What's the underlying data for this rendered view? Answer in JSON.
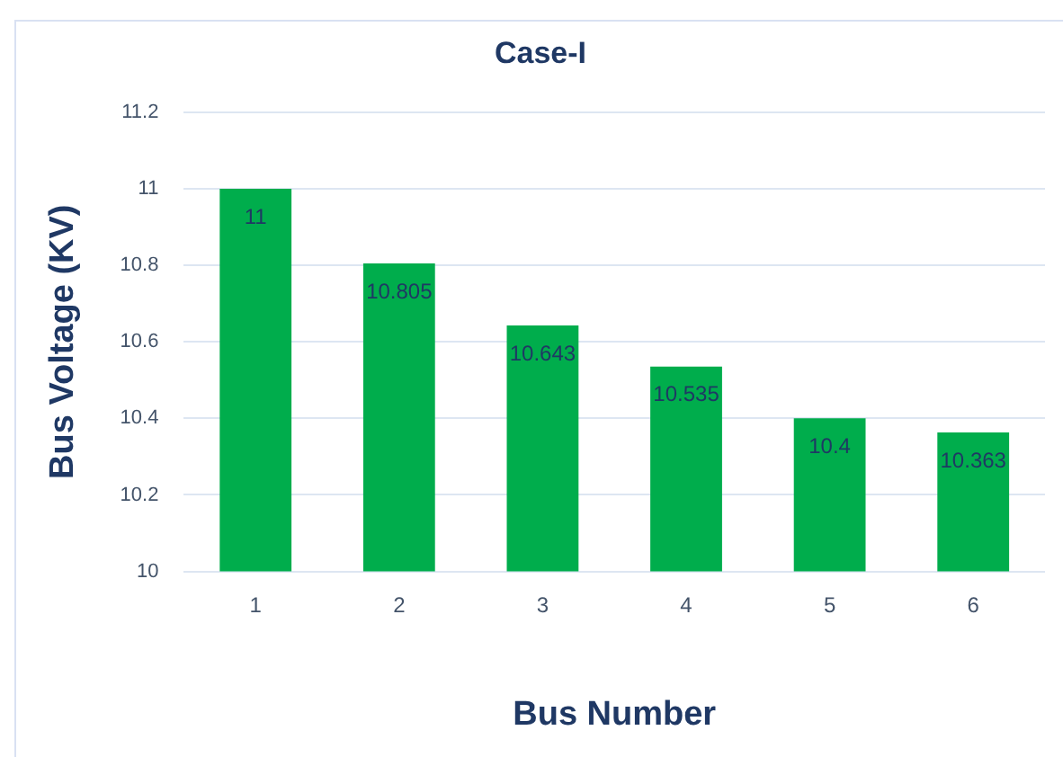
{
  "chart_data": {
    "type": "bar",
    "title": "Case-I",
    "xlabel": "Bus Number",
    "ylabel": "Bus Voltage (KV)",
    "categories": [
      "1",
      "2",
      "3",
      "4",
      "5",
      "6"
    ],
    "values": [
      11,
      10.805,
      10.643,
      10.535,
      10.4,
      10.363
    ],
    "color": "#00ad4c",
    "ylim": [
      10,
      11.2
    ],
    "yticks": [
      10,
      10.2,
      10.4,
      10.6,
      10.8,
      11,
      11.2
    ],
    "grid": "y",
    "data_labels": true
  }
}
